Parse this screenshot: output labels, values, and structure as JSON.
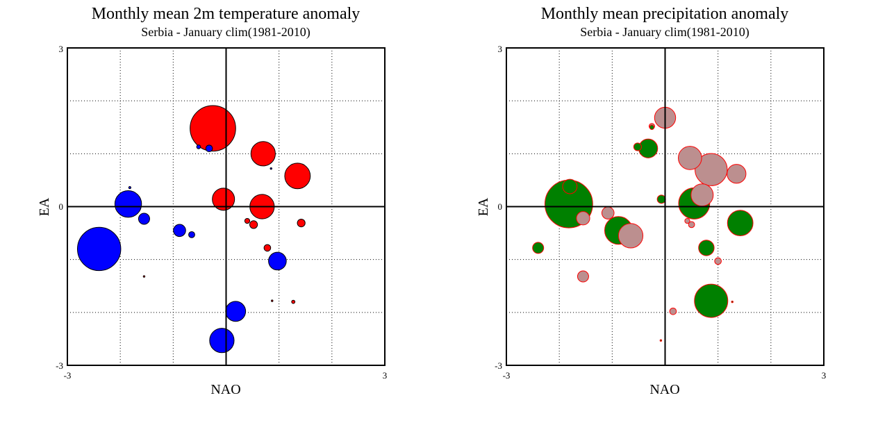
{
  "chart_data": [
    {
      "type": "scatter",
      "title": "Monthly mean 2m temperature anomaly",
      "subtitle": "Serbia - January  clim(1981-2010)",
      "xlabel": "NAO",
      "ylabel": "EA",
      "xlim": [
        -3,
        3
      ],
      "ylim": [
        -3,
        3
      ],
      "x_tick_labels": [
        "-3",
        "3"
      ],
      "y_tick_labels": [
        "3",
        "0",
        "-3"
      ],
      "grid": true,
      "positive_color": "#ff0000",
      "negative_color": "#0000ff",
      "points": [
        {
          "x": -0.25,
          "y": 1.48,
          "size": 4.1,
          "sign": "positive"
        },
        {
          "x": 0.7,
          "y": 1.0,
          "size": 2.2,
          "sign": "positive"
        },
        {
          "x": 1.35,
          "y": 0.58,
          "size": 2.3,
          "sign": "positive"
        },
        {
          "x": -0.05,
          "y": 0.14,
          "size": 2.0,
          "sign": "positive"
        },
        {
          "x": 0.68,
          "y": 0.0,
          "size": 2.2,
          "sign": "positive"
        },
        {
          "x": 0.52,
          "y": -0.34,
          "size": 0.7,
          "sign": "positive"
        },
        {
          "x": 0.4,
          "y": -0.27,
          "size": 0.45,
          "sign": "positive"
        },
        {
          "x": 1.42,
          "y": -0.31,
          "size": 0.7,
          "sign": "positive"
        },
        {
          "x": 0.78,
          "y": -0.78,
          "size": 0.6,
          "sign": "positive"
        },
        {
          "x": 1.27,
          "y": -1.8,
          "size": 0.3,
          "sign": "positive"
        },
        {
          "x": 0.87,
          "y": -1.78,
          "size": 0.15,
          "sign": "positive"
        },
        {
          "x": -1.55,
          "y": -1.32,
          "size": 0.15,
          "sign": "positive"
        },
        {
          "x": -0.32,
          "y": 1.1,
          "size": 0.6,
          "sign": "negative"
        },
        {
          "x": -0.52,
          "y": 1.13,
          "size": 0.35,
          "sign": "negative"
        },
        {
          "x": 0.85,
          "y": 0.72,
          "size": 0.15,
          "sign": "negative"
        },
        {
          "x": -1.82,
          "y": 0.36,
          "size": 0.2,
          "sign": "negative"
        },
        {
          "x": -1.85,
          "y": 0.05,
          "size": 2.4,
          "sign": "negative"
        },
        {
          "x": -1.55,
          "y": -0.23,
          "size": 1.0,
          "sign": "negative"
        },
        {
          "x": -0.88,
          "y": -0.45,
          "size": 1.1,
          "sign": "negative"
        },
        {
          "x": -0.65,
          "y": -0.53,
          "size": 0.55,
          "sign": "negative"
        },
        {
          "x": -2.4,
          "y": -0.8,
          "size": 3.9,
          "sign": "negative"
        },
        {
          "x": 0.97,
          "y": -1.03,
          "size": 1.6,
          "sign": "negative"
        },
        {
          "x": 0.18,
          "y": -1.98,
          "size": 1.8,
          "sign": "negative"
        },
        {
          "x": -0.08,
          "y": -2.53,
          "size": 2.2,
          "sign": "negative"
        }
      ]
    },
    {
      "type": "scatter",
      "title": "Monthly mean precipitation anomaly",
      "subtitle": "Serbia - January  clim(1981-2010)",
      "xlabel": "NAO",
      "ylabel": "EA",
      "xlim": [
        -3,
        3
      ],
      "ylim": [
        -3,
        3
      ],
      "x_tick_labels": [
        "-3",
        "3"
      ],
      "y_tick_labels": [
        "3",
        "0",
        "-3"
      ],
      "grid": true,
      "positive_color": "#008000",
      "negative_color": "#bc8f8f",
      "points": [
        {
          "x": 0.0,
          "y": 1.68,
          "size": 1.9,
          "sign": "negative"
        },
        {
          "x": -0.25,
          "y": 1.52,
          "size": 0.5,
          "sign": "negative"
        },
        {
          "x": 0.47,
          "y": 0.92,
          "size": 2.1,
          "sign": "negative"
        },
        {
          "x": 0.87,
          "y": 0.7,
          "size": 2.9,
          "sign": "negative"
        },
        {
          "x": 1.35,
          "y": 0.62,
          "size": 1.7,
          "sign": "negative"
        },
        {
          "x": 0.7,
          "y": 0.22,
          "size": 2.0,
          "sign": "negative"
        },
        {
          "x": -1.08,
          "y": -0.12,
          "size": 1.1,
          "sign": "negative"
        },
        {
          "x": -1.55,
          "y": -0.22,
          "size": 1.2,
          "sign": "negative"
        },
        {
          "x": -0.65,
          "y": -0.55,
          "size": 2.2,
          "sign": "negative"
        },
        {
          "x": -1.55,
          "y": -1.32,
          "size": 1.0,
          "sign": "negative"
        },
        {
          "x": 1.0,
          "y": -1.03,
          "size": 0.6,
          "sign": "negative"
        },
        {
          "x": 0.15,
          "y": -1.98,
          "size": 0.6,
          "sign": "negative"
        },
        {
          "x": 0.42,
          "y": -0.27,
          "size": 0.45,
          "sign": "negative"
        },
        {
          "x": 0.5,
          "y": -0.34,
          "size": 0.55,
          "sign": "negative"
        },
        {
          "x": -1.82,
          "y": 0.05,
          "size": 4.3,
          "sign": "positive"
        },
        {
          "x": -1.8,
          "y": 0.38,
          "size": 1.3,
          "sign": "positive"
        },
        {
          "x": -0.88,
          "y": -0.45,
          "size": 2.5,
          "sign": "positive"
        },
        {
          "x": -0.32,
          "y": 1.1,
          "size": 1.7,
          "sign": "positive"
        },
        {
          "x": -0.52,
          "y": 1.13,
          "size": 0.7,
          "sign": "positive"
        },
        {
          "x": -0.25,
          "y": 1.5,
          "size": 0.4,
          "sign": "positive"
        },
        {
          "x": -0.07,
          "y": 0.14,
          "size": 0.75,
          "sign": "positive"
        },
        {
          "x": 0.55,
          "y": 0.06,
          "size": 2.8,
          "sign": "positive"
        },
        {
          "x": 1.42,
          "y": -0.31,
          "size": 2.3,
          "sign": "positive"
        },
        {
          "x": 0.78,
          "y": -0.78,
          "size": 1.4,
          "sign": "positive"
        },
        {
          "x": -2.4,
          "y": -0.78,
          "size": 1.0,
          "sign": "positive"
        },
        {
          "x": 0.87,
          "y": -1.78,
          "size": 3.0,
          "sign": "positive"
        },
        {
          "x": 1.27,
          "y": -1.8,
          "size": 0.15,
          "sign": "positive"
        },
        {
          "x": -0.08,
          "y": -2.53,
          "size": 0.15,
          "sign": "positive"
        }
      ]
    }
  ]
}
